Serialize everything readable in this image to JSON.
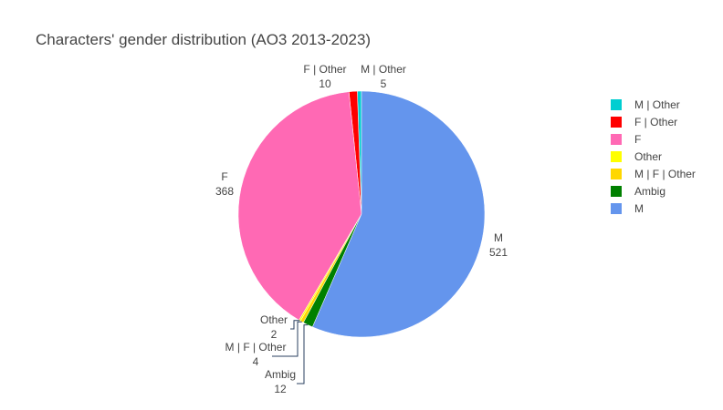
{
  "chart_data": {
    "type": "pie",
    "title": "Characters' gender distribution (AO3 2013-2023)",
    "slices": [
      {
        "label": "M | Other",
        "value": 5,
        "color": "#00CED1"
      },
      {
        "label": "F | Other",
        "value": 10,
        "color": "#FF0000"
      },
      {
        "label": "F",
        "value": 368,
        "color": "#FF69B4"
      },
      {
        "label": "Other",
        "value": 2,
        "color": "#FFFF00"
      },
      {
        "label": "M | F | Other",
        "value": 4,
        "color": "#FFD700"
      },
      {
        "label": "Ambig",
        "value": 12,
        "color": "#008000"
      },
      {
        "label": "M",
        "value": 521,
        "color": "#6495ED"
      }
    ],
    "legend": {
      "placement": "top-right"
    },
    "direction": "counterclockwise"
  }
}
